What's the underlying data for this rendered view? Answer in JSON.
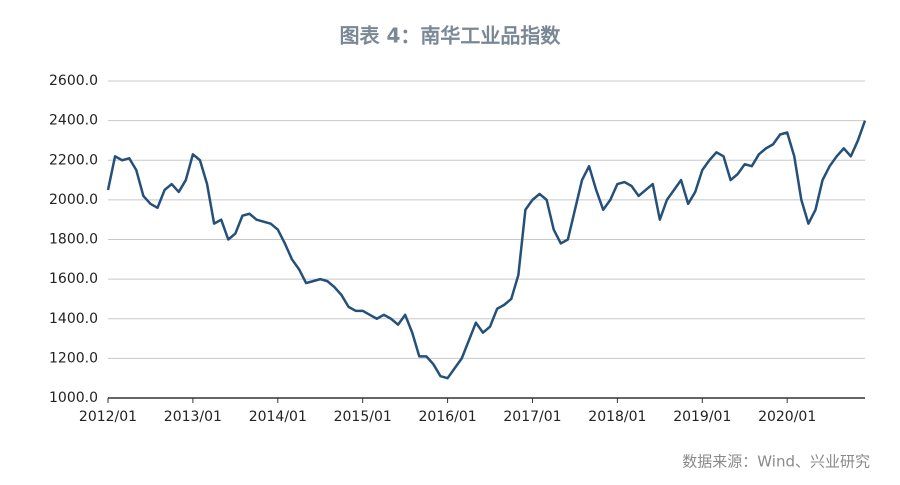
{
  "chart_data": {
    "type": "line",
    "title": "图表 4：南华工业品指数",
    "source": "数据来源：Wind、兴业研究",
    "x": [
      "2012/01",
      "2012/02",
      "2012/03",
      "2012/04",
      "2012/05",
      "2012/06",
      "2012/07",
      "2012/08",
      "2012/09",
      "2012/10",
      "2012/11",
      "2012/12",
      "2013/01",
      "2013/02",
      "2013/03",
      "2013/04",
      "2013/05",
      "2013/06",
      "2013/07",
      "2013/08",
      "2013/09",
      "2013/10",
      "2013/11",
      "2013/12",
      "2014/01",
      "2014/02",
      "2014/03",
      "2014/04",
      "2014/05",
      "2014/06",
      "2014/07",
      "2014/08",
      "2014/09",
      "2014/10",
      "2014/11",
      "2014/12",
      "2015/01",
      "2015/02",
      "2015/03",
      "2015/04",
      "2015/05",
      "2015/06",
      "2015/07",
      "2015/08",
      "2015/09",
      "2015/10",
      "2015/11",
      "2015/12",
      "2016/01",
      "2016/02",
      "2016/03",
      "2016/04",
      "2016/05",
      "2016/06",
      "2016/07",
      "2016/08",
      "2016/09",
      "2016/10",
      "2016/11",
      "2016/12",
      "2017/01",
      "2017/02",
      "2017/03",
      "2017/04",
      "2017/05",
      "2017/06",
      "2017/07",
      "2017/08",
      "2017/09",
      "2017/10",
      "2017/11",
      "2017/12",
      "2018/01",
      "2018/02",
      "2018/03",
      "2018/04",
      "2018/05",
      "2018/06",
      "2018/07",
      "2018/08",
      "2018/09",
      "2018/10",
      "2018/11",
      "2018/12",
      "2019/01",
      "2019/02",
      "2019/03",
      "2019/04",
      "2019/05",
      "2019/06",
      "2019/07",
      "2019/08",
      "2019/09",
      "2019/10",
      "2019/11",
      "2019/12",
      "2020/01",
      "2020/02",
      "2020/03",
      "2020/04",
      "2020/05",
      "2020/06",
      "2020/07",
      "2020/08",
      "2020/09",
      "2020/10",
      "2020/11",
      "2020/12"
    ],
    "xticks": [
      "2012/01",
      "2013/01",
      "2014/01",
      "2015/01",
      "2016/01",
      "2017/01",
      "2018/01",
      "2019/01",
      "2020/01"
    ],
    "series": [
      {
        "color": "#24507a",
        "values": [
          2050,
          2220,
          2200,
          2210,
          2150,
          2020,
          1980,
          1960,
          2050,
          2080,
          2040,
          2100,
          2230,
          2200,
          2080,
          1880,
          1900,
          1800,
          1830,
          1920,
          1930,
          1900,
          1890,
          1880,
          1850,
          1780,
          1700,
          1650,
          1580,
          1590,
          1600,
          1590,
          1560,
          1520,
          1460,
          1440,
          1440,
          1420,
          1400,
          1420,
          1400,
          1370,
          1420,
          1330,
          1210,
          1210,
          1170,
          1110,
          1100,
          1150,
          1200,
          1290,
          1380,
          1330,
          1360,
          1450,
          1470,
          1500,
          1620,
          1950,
          2000,
          2030,
          2000,
          1850,
          1780,
          1800,
          1950,
          2100,
          2170,
          2050,
          1950,
          2000,
          2080,
          2090,
          2070,
          2020,
          2050,
          2080,
          1900,
          2000,
          2050,
          2100,
          1980,
          2040,
          2150,
          2200,
          2240,
          2220,
          2100,
          2130,
          2180,
          2170,
          2230,
          2260,
          2280,
          2330,
          2340,
          2220,
          2000,
          1880,
          1950,
          2100,
          2170,
          2220,
          2260,
          2220,
          2300,
          2400
        ]
      }
    ],
    "ylim": [
      1000,
      2600
    ],
    "yticks": [
      {
        "value": 1000,
        "label": "1000.0"
      },
      {
        "value": 1200,
        "label": "1200.0"
      },
      {
        "value": 1400,
        "label": "1400.0"
      },
      {
        "value": 1600,
        "label": "1600.0"
      },
      {
        "value": 1800,
        "label": "1800.0"
      },
      {
        "value": 2000,
        "label": "2000.0"
      },
      {
        "value": 2200,
        "label": "2200.0"
      },
      {
        "value": 2400,
        "label": "2400.0"
      },
      {
        "value": 2600,
        "label": "2600.0"
      }
    ],
    "grid": true
  }
}
